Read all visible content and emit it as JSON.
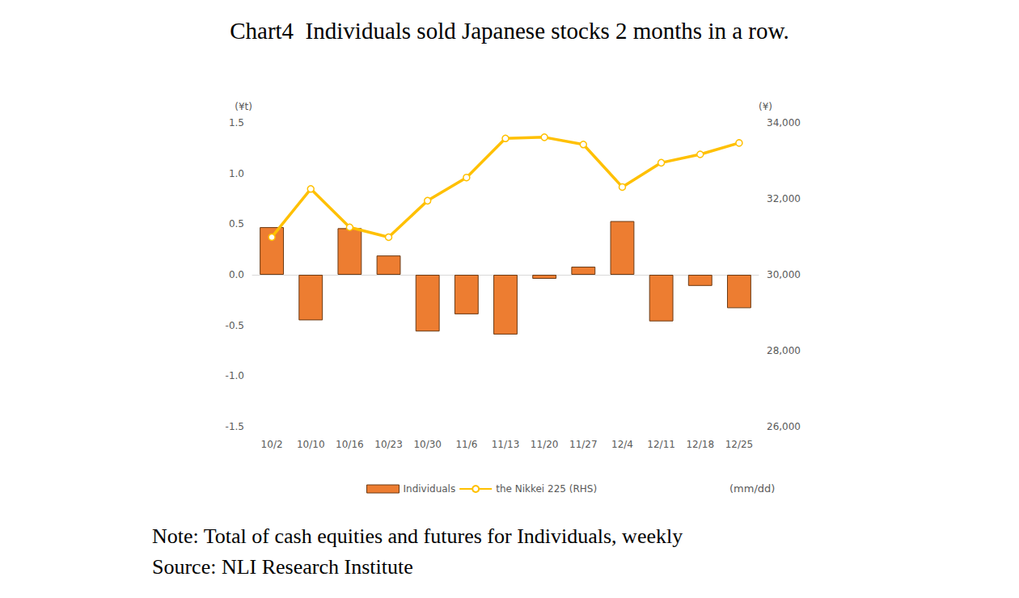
{
  "chart_data": {
    "type": "bar",
    "title": "Chart4  Individuals sold Japanese stocks 2 months in a row.",
    "categories": [
      "10/2",
      "10/10",
      "10/16",
      "10/23",
      "10/30",
      "11/6",
      "11/13",
      "11/20",
      "11/27",
      "12/4",
      "12/11",
      "12/18",
      "12/25"
    ],
    "series": [
      {
        "name": "Individuals",
        "type": "bar",
        "color": "#ED7D31",
        "values": [
          0.47,
          -0.45,
          0.46,
          0.19,
          -0.56,
          -0.39,
          -0.59,
          -0.04,
          0.08,
          0.53,
          -0.46,
          -0.11,
          -0.33
        ]
      },
      {
        "name": "the Nikkei 225 (RHS)",
        "type": "line",
        "axis": "y2",
        "color": "#FFC000",
        "marker": "circle",
        "values": [
          30990,
          32260,
          31250,
          30990,
          31950,
          32560,
          33590,
          33620,
          33430,
          32310,
          32950,
          33170,
          33470
        ]
      }
    ],
    "y_label": "(¥t)",
    "y2_label": "(¥)",
    "x_label": "(mm/dd)",
    "ylim": [
      -1.5,
      1.5
    ],
    "yticks": [
      {
        "value": -1.5,
        "label": "-1.5"
      },
      {
        "value": -1,
        "label": "-1.0"
      },
      {
        "value": -0.5,
        "label": "-0.5"
      },
      {
        "value": 0,
        "label": "0.0"
      },
      {
        "value": 0.5,
        "label": "0.5"
      },
      {
        "value": 1,
        "label": "1.0"
      },
      {
        "value": 1.5,
        "label": "1.5"
      }
    ],
    "y2lim": [
      26000,
      34000
    ],
    "y2ticks": [
      {
        "value": 26000,
        "label": "26,000"
      },
      {
        "value": 28000,
        "label": "28,000"
      },
      {
        "value": 30000,
        "label": "30,000"
      },
      {
        "value": 32000,
        "label": "32,000"
      },
      {
        "value": 34000,
        "label": "34,000"
      }
    ],
    "grid": false,
    "legend": "bottom",
    "note": "Note: Total of cash equities and futures for Individuals, weekly",
    "source": "Source: NLI Research Institute"
  }
}
